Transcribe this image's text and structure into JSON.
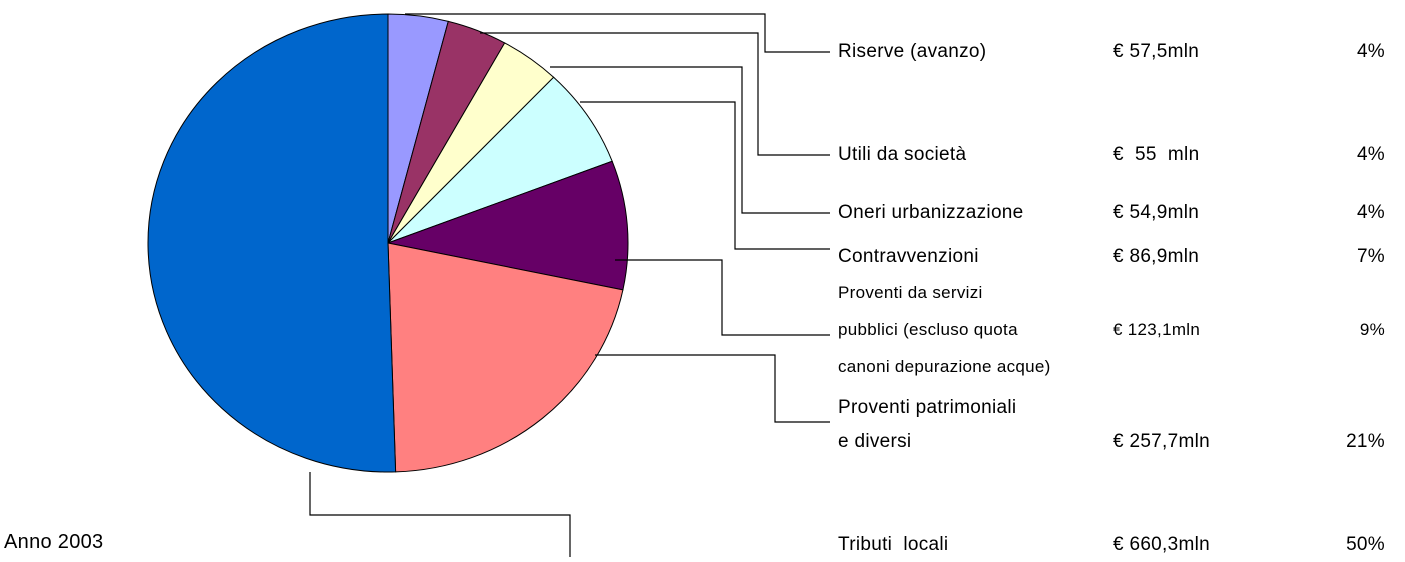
{
  "chart_data": {
    "type": "pie",
    "subtitle": "Anno 2003",
    "categories": [
      "Riserve (avanzo)",
      "Utili da società",
      "Oneri urbanizzazione",
      "Contravvenzioni",
      "Proventi da servizi\npubblici (escluso quota\ncanoni depurazione acque)",
      "Proventi patrimoniali\ne diversi",
      "Tributi  locali"
    ],
    "values": [
      4,
      4,
      4,
      7,
      9,
      21,
      50
    ],
    "value_labels": [
      "4%",
      "4%",
      "4%",
      "7%",
      "9%",
      "21%",
      "50%"
    ],
    "amounts": [
      57.5,
      55,
      54.9,
      86.9,
      123.1,
      257.7,
      660.3
    ],
    "amount_labels": [
      "€ 57,5mln",
      "€  55  mln",
      "€ 54,9mln",
      "€ 86,9mln",
      "€ 123,1mln",
      "€ 257,7mln",
      "€ 660,3mln"
    ],
    "colors": [
      "#9999ff",
      "#993366",
      "#ffffcc",
      "#ccffff",
      "#660066",
      "#ff8080",
      "#0066cc"
    ]
  }
}
